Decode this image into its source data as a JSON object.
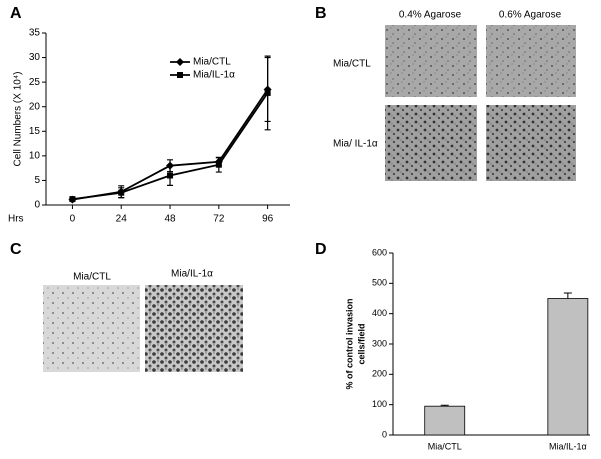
{
  "panels": {
    "labels": [
      "A",
      "B",
      "C",
      "D"
    ],
    "b_columns": [
      "0.4% Agarose",
      "0.6% Agarose"
    ],
    "b_rows": [
      "Mia/CTL",
      "Mia/ IL-1α"
    ],
    "c_columns": [
      "Mia/CTL",
      "Mia/IL-1α"
    ]
  },
  "chart_data": [
    {
      "type": "line",
      "xlabel": "Hrs",
      "ylabel": "Cell Numbers (X 10⁴)",
      "x": [
        0,
        24,
        48,
        72,
        96
      ],
      "xlim": [
        -13,
        107
      ],
      "xticks": [
        0,
        24,
        48,
        72,
        96
      ],
      "ylim": [
        0,
        35
      ],
      "yticks": [
        0,
        5,
        10,
        15,
        20,
        25,
        30,
        35
      ],
      "grid": false,
      "legend": "top-center",
      "series": [
        {
          "name": "Mia/CTL",
          "color": "#000000",
          "marker": "diamond",
          "values": [
            1.1,
            2.7,
            8,
            8.8,
            23.5
          ],
          "errors": [
            0.3,
            1.2,
            1.2,
            0.8,
            6.5
          ]
        },
        {
          "name": "Mia/IL-1α",
          "color": "#000000",
          "marker": "square",
          "values": [
            1.2,
            2.5,
            6,
            8.2,
            22.8
          ],
          "errors": [
            0.3,
            1,
            2,
            1.5,
            7.5
          ]
        }
      ]
    },
    {
      "type": "bar",
      "ylabel": [
        "% of control invasion",
        "cells/field"
      ],
      "categories": [
        "Mia/CTL",
        "Mia/IL-1α"
      ],
      "values": [
        95,
        450
      ],
      "errors": [
        3,
        18
      ],
      "color": "#c0c0c0",
      "ylim": [
        0,
        600
      ],
      "yticks": [
        0,
        100,
        200,
        300,
        400,
        500,
        600
      ],
      "grid": false
    }
  ]
}
